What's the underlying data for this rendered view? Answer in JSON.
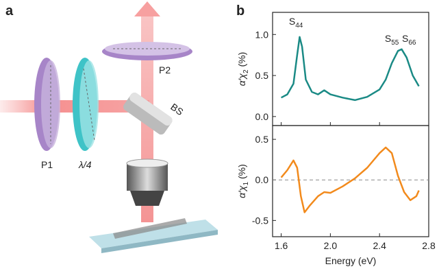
{
  "panel_labels": [
    "a",
    "b"
  ],
  "diagram": {
    "labels": {
      "p1": "P1",
      "quarter_wave": "λ/4",
      "bs": "BS",
      "p2": "P2"
    }
  },
  "chart_data": [
    {
      "type": "line",
      "ylabel": {
        "main": "α′χ",
        "sub": "2",
        "unit": "(%)"
      },
      "xlim": [
        1.53,
        2.8
      ],
      "xticks": [
        1.6,
        {
          "value": 2,
          "label": "2.0"
        },
        2.4,
        2.8
      ],
      "ylim": [
        -0.11,
        1.27
      ],
      "yticks": [
        {
          "value": 0,
          "label": "0.0"
        },
        0.5,
        {
          "value": 1,
          "label": "1.0"
        }
      ],
      "x": [
        1.6,
        1.65,
        1.7,
        1.73,
        1.75,
        1.77,
        1.8,
        1.85,
        1.9,
        1.95,
        2.0,
        2.1,
        2.2,
        2.3,
        2.4,
        2.45,
        2.5,
        2.55,
        2.58,
        2.62,
        2.67,
        2.72
      ],
      "series": [
        {
          "color": "#1a8a85",
          "values": [
            0.23,
            0.27,
            0.4,
            0.75,
            0.97,
            0.85,
            0.45,
            0.3,
            0.27,
            0.32,
            0.27,
            0.23,
            0.2,
            0.24,
            0.33,
            0.45,
            0.65,
            0.8,
            0.82,
            0.72,
            0.5,
            0.37
          ]
        }
      ],
      "annotations": [
        {
          "label": "S",
          "sub": "44",
          "x": 1.72,
          "y": 1.12
        },
        {
          "label": "S",
          "sub": "55",
          "x": 2.5,
          "y": 0.91
        },
        {
          "label": "S",
          "sub": "66",
          "x": 2.64,
          "y": 0.91
        }
      ]
    },
    {
      "type": "line",
      "ylabel": {
        "main": "α′χ",
        "sub": "1",
        "unit": "(%)"
      },
      "xlabel": "Energy (eV)",
      "xlim": [
        1.53,
        2.8
      ],
      "xticks": [
        1.6,
        {
          "value": 2,
          "label": "2.0"
        },
        2.4,
        2.8
      ],
      "ylim": [
        -0.7,
        0.67
      ],
      "yticks": [
        -0.5,
        {
          "value": 0,
          "label": "0.0"
        },
        0.5
      ],
      "reference_line": 0,
      "x": [
        1.6,
        1.65,
        1.7,
        1.73,
        1.76,
        1.79,
        1.83,
        1.9,
        1.95,
        2.0,
        2.1,
        2.2,
        2.3,
        2.4,
        2.45,
        2.5,
        2.55,
        2.6,
        2.65,
        2.7,
        2.72
      ],
      "series": [
        {
          "color": "#f28a1c",
          "values": [
            0.03,
            0.12,
            0.24,
            0.15,
            -0.2,
            -0.4,
            -0.32,
            -0.2,
            -0.15,
            -0.16,
            -0.08,
            0.02,
            0.15,
            0.33,
            0.4,
            0.33,
            0.05,
            -0.15,
            -0.25,
            -0.2,
            -0.13
          ]
        }
      ]
    }
  ]
}
